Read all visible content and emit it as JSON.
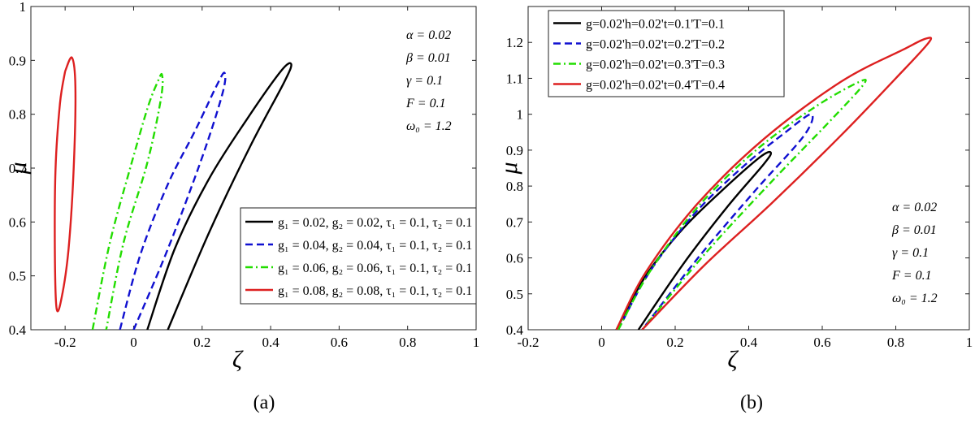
{
  "chart_data": [
    {
      "type": "line",
      "caption": "(a)",
      "xlabel": "ζ",
      "ylabel": "μ",
      "xlim": [
        -0.3,
        1
      ],
      "ylim": [
        0.4,
        1
      ],
      "xticks": [
        "-0.2",
        "0",
        "0.2",
        "0.4",
        "0.6",
        "0.8",
        "1"
      ],
      "xtick_values": [
        -0.2,
        0,
        0.2,
        0.4,
        0.6,
        0.8,
        1
      ],
      "yticks": [
        "0.4",
        "0.5",
        "0.6",
        "0.7",
        "0.8",
        "0.9",
        "1"
      ],
      "ytick_values": [
        0.4,
        0.5,
        0.6,
        0.7,
        0.8,
        0.9,
        1
      ],
      "params": [
        "α = 0.02",
        "β = 0.01",
        "γ = 0.1",
        "F = 0.1",
        "ω₀ = 1.2"
      ],
      "legend_position": "bottom-right",
      "series": [
        {
          "name": "g₁ = 0.02, g₂ = 0.02, τ₁ = 0.1, τ₂ = 0.1",
          "color": "#000000",
          "dash": "solid",
          "points": [
            [
              0.04,
              0.4
            ],
            [
              0.12,
              0.55
            ],
            [
              0.22,
              0.68
            ],
            [
              0.33,
              0.79
            ],
            [
              0.43,
              0.88
            ],
            [
              0.46,
              0.893
            ],
            [
              0.44,
              0.86
            ],
            [
              0.34,
              0.74
            ],
            [
              0.22,
              0.58
            ],
            [
              0.1,
              0.4
            ]
          ]
        },
        {
          "name": "g₁ = 0.04, g₂ = 0.04, τ₁ = 0.1, τ₂ = 0.1",
          "color": "#1010d0",
          "dash": "dashed",
          "points": [
            [
              -0.04,
              0.4
            ],
            [
              0.02,
              0.54
            ],
            [
              0.1,
              0.67
            ],
            [
              0.18,
              0.77
            ],
            [
              0.24,
              0.85
            ],
            [
              0.265,
              0.877
            ],
            [
              0.26,
              0.84
            ],
            [
              0.2,
              0.72
            ],
            [
              0.1,
              0.55
            ],
            [
              0.0,
              0.4
            ]
          ]
        },
        {
          "name": "g₁ = 0.06, g₂ = 0.06, τ₁ = 0.1, τ₂ = 0.1",
          "color": "#22dd00",
          "dash": "dashdot",
          "points": [
            [
              -0.12,
              0.4
            ],
            [
              -0.07,
              0.56
            ],
            [
              -0.01,
              0.7
            ],
            [
              0.04,
              0.81
            ],
            [
              0.07,
              0.86
            ],
            [
              0.083,
              0.873
            ],
            [
              0.08,
              0.83
            ],
            [
              0.04,
              0.71
            ],
            [
              -0.03,
              0.56
            ],
            [
              -0.08,
              0.4
            ]
          ]
        },
        {
          "name": "g₁ = 0.08, g₂ = 0.08, τ₁ = 0.1, τ₂ = 0.1",
          "color": "#dd2020",
          "dash": "solid",
          "points": [
            [
              -0.2,
              0.88
            ],
            [
              -0.18,
              0.905
            ],
            [
              -0.17,
              0.85
            ],
            [
              -0.175,
              0.7
            ],
            [
              -0.19,
              0.55
            ],
            [
              -0.21,
              0.46
            ],
            [
              -0.225,
              0.44
            ],
            [
              -0.23,
              0.55
            ],
            [
              -0.228,
              0.7
            ],
            [
              -0.215,
              0.82
            ],
            [
              -0.2,
              0.88
            ]
          ]
        }
      ]
    },
    {
      "type": "line",
      "caption": "(b)",
      "xlabel": "ζ",
      "ylabel": "μ",
      "xlim": [
        -0.2,
        1
      ],
      "ylim": [
        0.4,
        1.3
      ],
      "xticks": [
        "-0.2",
        "0",
        "0.2",
        "0.4",
        "0.6",
        "0.8",
        "1"
      ],
      "xtick_values": [
        -0.2,
        0,
        0.2,
        0.4,
        0.6,
        0.8,
        1
      ],
      "yticks": [
        "0.4",
        "0.5",
        "0.6",
        "0.7",
        "0.8",
        "0.9",
        "1",
        "1.1",
        "1.2"
      ],
      "ytick_values": [
        0.4,
        0.5,
        0.6,
        0.7,
        0.8,
        0.9,
        1,
        1.1,
        1.2
      ],
      "params": [
        "α = 0.02",
        "β = 0.01",
        "γ = 0.1",
        "F = 0.1",
        "ω₀ = 1.2"
      ],
      "legend_position": "top-left",
      "series": [
        {
          "name": "g=0.02'h=0.02't=0.1'T=0.1",
          "color": "#000000",
          "dash": "solid",
          "points": [
            [
              0.04,
              0.4
            ],
            [
              0.12,
              0.55
            ],
            [
              0.22,
              0.68
            ],
            [
              0.33,
              0.79
            ],
            [
              0.43,
              0.88
            ],
            [
              0.46,
              0.893
            ],
            [
              0.44,
              0.86
            ],
            [
              0.34,
              0.74
            ],
            [
              0.22,
              0.58
            ],
            [
              0.1,
              0.4
            ]
          ]
        },
        {
          "name": "g=0.02'h=0.02't=0.2'T=0.2",
          "color": "#1010d0",
          "dash": "dashed",
          "points": [
            [
              0.045,
              0.4
            ],
            [
              0.13,
              0.56
            ],
            [
              0.25,
              0.72
            ],
            [
              0.38,
              0.85
            ],
            [
              0.5,
              0.95
            ],
            [
              0.57,
              1.0
            ],
            [
              0.55,
              0.94
            ],
            [
              0.42,
              0.79
            ],
            [
              0.27,
              0.61
            ],
            [
              0.11,
              0.4
            ]
          ]
        },
        {
          "name": "g=0.02'h=0.02't=0.3'T=0.3",
          "color": "#22dd00",
          "dash": "dashdot",
          "points": [
            [
              0.045,
              0.4
            ],
            [
              0.13,
              0.56
            ],
            [
              0.26,
              0.74
            ],
            [
              0.42,
              0.9
            ],
            [
              0.58,
              1.02
            ],
            [
              0.7,
              1.09
            ],
            [
              0.71,
              1.08
            ],
            [
              0.62,
              0.98
            ],
            [
              0.46,
              0.81
            ],
            [
              0.28,
              0.61
            ],
            [
              0.11,
              0.4
            ]
          ]
        },
        {
          "name": "g=0.02'h=0.02't=0.4'T=0.4",
          "color": "#dd2020",
          "dash": "solid",
          "points": [
            [
              0.04,
              0.4
            ],
            [
              0.12,
              0.56
            ],
            [
              0.26,
              0.75
            ],
            [
              0.44,
              0.93
            ],
            [
              0.65,
              1.09
            ],
            [
              0.82,
              1.18
            ],
            [
              0.88,
              1.21
            ],
            [
              0.89,
              1.2
            ],
            [
              0.8,
              1.1
            ],
            [
              0.65,
              0.94
            ],
            [
              0.46,
              0.75
            ],
            [
              0.28,
              0.58
            ],
            [
              0.11,
              0.4
            ]
          ]
        }
      ]
    }
  ]
}
